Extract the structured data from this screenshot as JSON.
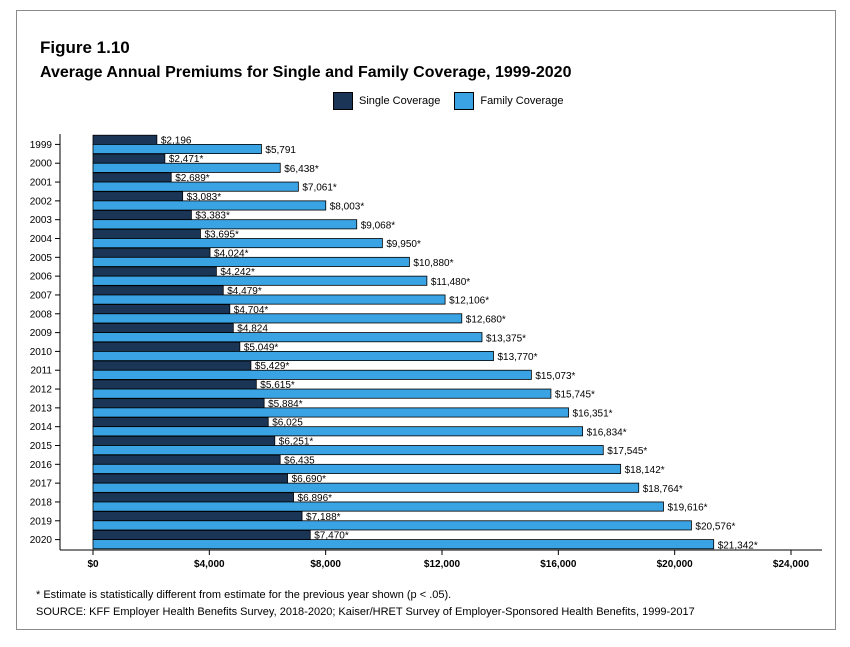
{
  "figure": {
    "label": "Figure 1.10",
    "title": "Average Annual Premiums for Single and Family Coverage, 1999-2020"
  },
  "legend": {
    "single": "Single Coverage",
    "family": "Family Coverage"
  },
  "colors": {
    "single": "#1a3556",
    "family": "#3aa3e3"
  },
  "chart_data": {
    "type": "bar",
    "orientation": "horizontal",
    "categories": [
      "1999",
      "2000",
      "2001",
      "2002",
      "2003",
      "2004",
      "2005",
      "2006",
      "2007",
      "2008",
      "2009",
      "2010",
      "2011",
      "2012",
      "2013",
      "2014",
      "2015",
      "2016",
      "2017",
      "2018",
      "2019",
      "2020"
    ],
    "series": [
      {
        "name": "Single Coverage",
        "values": [
          2196,
          2471,
          2689,
          3083,
          3383,
          3695,
          4024,
          4242,
          4479,
          4704,
          4824,
          5049,
          5429,
          5615,
          5884,
          6025,
          6251,
          6435,
          6690,
          6896,
          7188,
          7470
        ],
        "labels": [
          "$2,196",
          "$2,471*",
          "$2,689*",
          "$3,083*",
          "$3,383*",
          "$3,695*",
          "$4,024*",
          "$4,242*",
          "$4,479*",
          "$4,704*",
          "$4,824",
          "$5,049*",
          "$5,429*",
          "$5,615*",
          "$5,884*",
          "$6,025",
          "$6,251*",
          "$6,435",
          "$6,690*",
          "$6,896*",
          "$7,188*",
          "$7,470*"
        ]
      },
      {
        "name": "Family Coverage",
        "values": [
          5791,
          6438,
          7061,
          8003,
          9068,
          9950,
          10880,
          11480,
          12106,
          12680,
          13375,
          13770,
          15073,
          15745,
          16351,
          16834,
          17545,
          18142,
          18764,
          19616,
          20576,
          21342
        ],
        "labels": [
          "$5,791",
          "$6,438*",
          "$7,061*",
          "$8,003*",
          "$9,068*",
          "$9,950*",
          "$10,880*",
          "$11,480*",
          "$12,106*",
          "$12,680*",
          "$13,375*",
          "$13,770*",
          "$15,073*",
          "$15,745*",
          "$16,351*",
          "$16,834*",
          "$17,545*",
          "$18,142*",
          "$18,764*",
          "$19,616*",
          "$20,576*",
          "$21,342*"
        ]
      }
    ],
    "xlim": [
      0,
      24000
    ],
    "xticks": [
      0,
      4000,
      8000,
      12000,
      16000,
      20000,
      24000
    ],
    "xtick_labels": [
      "$0",
      "$4,000",
      "$8,000",
      "$12,000",
      "$16,000",
      "$20,000",
      "$24,000"
    ],
    "grid": false,
    "legend_position": "top"
  },
  "footnote": "* Estimate is statistically different from estimate for the previous year shown (p < .05).",
  "source": "SOURCE: KFF Employer Health Benefits Survey, 2018-2020; Kaiser/HRET Survey of Employer-Sponsored Health Benefits, 1999-2017"
}
